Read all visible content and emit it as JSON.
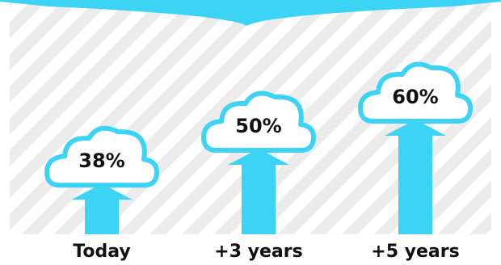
{
  "colors": {
    "accent": "#3dd3f5",
    "cloud_fill": "#ffffff",
    "stripe_light": "#ececec",
    "stripe_dark": "#ffffff",
    "text": "#111111"
  },
  "icons": {
    "cloud": "cloud-icon",
    "arrow": "arrow-up-icon"
  },
  "chart_data": {
    "type": "bar",
    "categories": [
      "Today",
      "+3 years",
      "+5 years"
    ],
    "values": [
      38,
      50,
      60
    ],
    "data_labels": [
      "38%",
      "50%",
      "60%"
    ],
    "title": "",
    "xlabel": "",
    "ylabel": "",
    "ylim": [
      0,
      75
    ],
    "grid": false,
    "legend": "none"
  }
}
